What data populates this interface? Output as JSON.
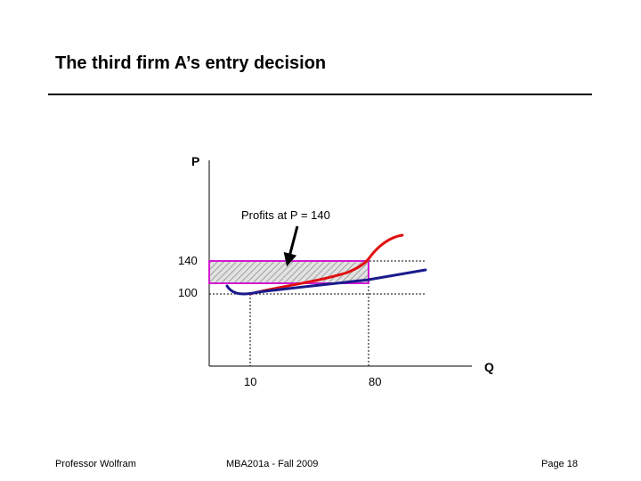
{
  "slide": {
    "title": "The third firm A’s entry decision"
  },
  "diagram": {
    "y_axis_label": "P",
    "x_axis_label": "Q",
    "annotation": "Profits at P = 140",
    "price_ticks": [
      "140",
      "100"
    ],
    "quantity_ticks": [
      "10",
      "80"
    ],
    "colors": {
      "marginal_cost_curve": "#e01010",
      "average_cost_curve": "#1a1a8c",
      "profit_box_border": "#d11ad1",
      "profit_box_hatch": "#a0a0a0",
      "dotted_guides": "#000000"
    }
  },
  "footer": {
    "left": "Professor Wolfram",
    "center": "MBA201a - Fall 2009",
    "right": "Page 18"
  }
}
